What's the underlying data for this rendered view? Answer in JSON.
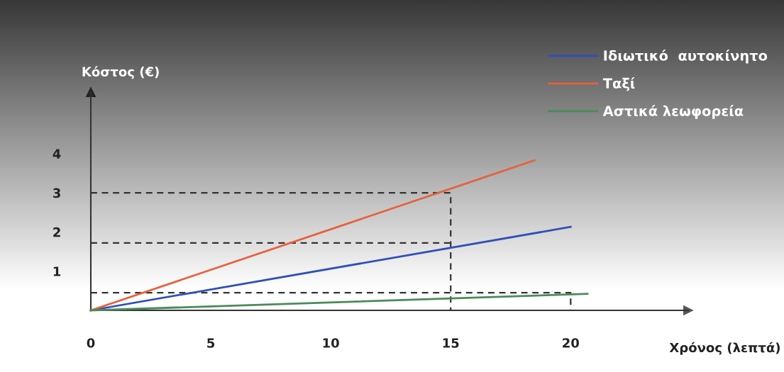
{
  "chart_data": {
    "type": "line",
    "xlabel": "Χρόνος (λεπτά)",
    "ylabel": "Κόστος (€)",
    "xlim": [
      0,
      24.9
    ],
    "ylim": [
      0,
      5.57
    ],
    "xticks": [
      0,
      5,
      10,
      15,
      20
    ],
    "yticks": [
      1,
      2,
      3,
      4
    ],
    "grid": false,
    "legend": "top right",
    "line_style": "solid",
    "marker": "none",
    "series": [
      {
        "name": "Ιδιωτικό  αυτοκίνητο",
        "color": "#3050b8",
        "x": [
          0,
          20
        ],
        "values": [
          0,
          2.13
        ]
      },
      {
        "name": "Ταξί",
        "color": "#e8603c",
        "x": [
          0,
          18.5
        ],
        "values": [
          0,
          3.83
        ]
      },
      {
        "name": "Αστικά λεωφορεία",
        "color": "#4a8a5a",
        "x": [
          0,
          20.7
        ],
        "values": [
          0,
          0.42
        ]
      },
      {
        "color": "#333333",
        "line_style": "dashed",
        "x": [
          0,
          15,
          15
        ],
        "values": [
          3,
          3,
          0
        ]
      },
      {
        "color": "#333333",
        "line_style": "dashed",
        "x": [
          0,
          15
        ],
        "values": [
          1.72,
          1.72
        ]
      },
      {
        "color": "#333333",
        "line_style": "dashed",
        "x": [
          0,
          20,
          20
        ],
        "values": [
          0.45,
          0.45,
          0
        ]
      }
    ]
  }
}
